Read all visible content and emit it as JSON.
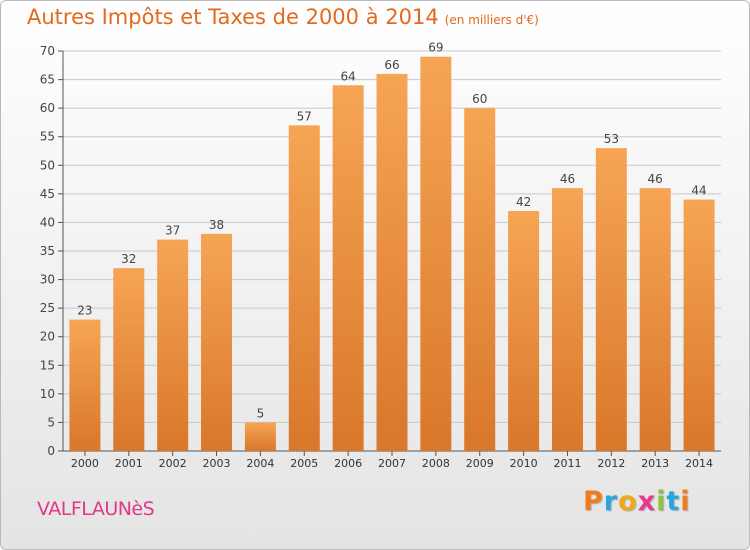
{
  "header": {
    "title": "Autres Impôts et Taxes de 2000 à 2014",
    "unit": "(en milliers d'€)"
  },
  "footer": {
    "commune": "VALFLAUNèS",
    "logo_letters": [
      "P",
      "r",
      "o",
      "x",
      "i",
      "t",
      "i"
    ],
    "logo_colors": [
      "#ef7d1e",
      "#2aa6dd",
      "#f2a818",
      "#e43a8c",
      "#8cc63f",
      "#2aa6dd",
      "#ef7d1e"
    ]
  },
  "colors": {
    "bar_light": "#f6a555",
    "bar_dark": "#d9772a",
    "axis": "#555555",
    "grid": "#c8c8c8",
    "title": "#e26a1a"
  },
  "chart_data": {
    "type": "bar",
    "categories": [
      "2000",
      "2001",
      "2002",
      "2003",
      "2004",
      "2005",
      "2006",
      "2007",
      "2008",
      "2009",
      "2010",
      "2011",
      "2012",
      "2013",
      "2014"
    ],
    "values": [
      23,
      32,
      37,
      38,
      5,
      57,
      64,
      66,
      69,
      60,
      42,
      46,
      53,
      46,
      44
    ],
    "title": "Autres Impôts et Taxes de 2000 à 2014",
    "ylim": [
      0,
      70
    ],
    "yticks": [
      0,
      5,
      10,
      15,
      20,
      25,
      30,
      35,
      40,
      45,
      50,
      55,
      60,
      65,
      70
    ],
    "grid": true
  }
}
